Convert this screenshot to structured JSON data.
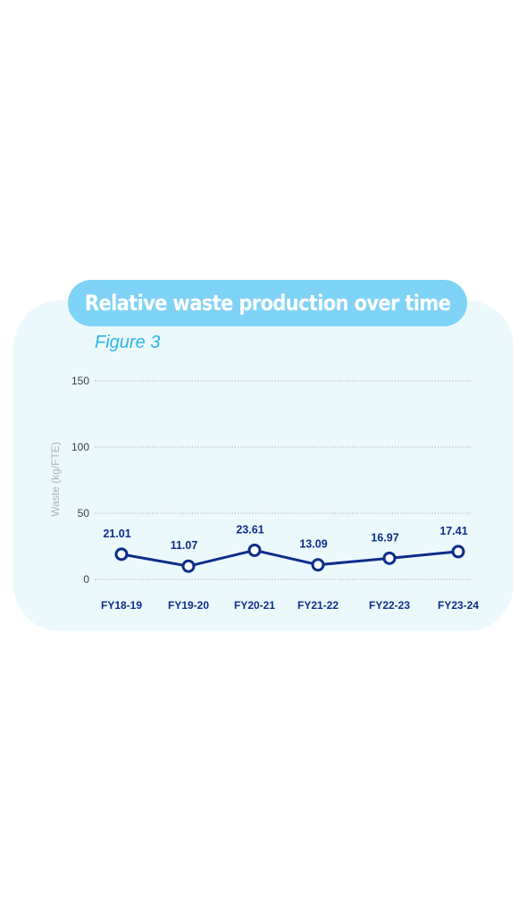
{
  "header": {
    "title": "Relative waste production over time"
  },
  "figure": {
    "label": "Figure 3"
  },
  "colors": {
    "card_bg": "#ecf9fc",
    "title_pill": "#7fd3f7",
    "line": "#0b2d8a",
    "figure_label": "#2ab6ea",
    "grid": "#8a8f96"
  },
  "chart_data": {
    "type": "line",
    "title": "Relative waste production over time",
    "subtitle": "Figure 3",
    "xlabel": "",
    "ylabel": "Waste (kg/FTE)",
    "categories": [
      "FY18-19",
      "FY19-20",
      "FY20-21",
      "FY21-22",
      "FY22-23",
      "FY23-24"
    ],
    "series": [
      {
        "values": [
          21.01,
          11.07,
          23.61,
          13.09,
          16.97,
          17.41
        ],
        "labels": [
          "21.01",
          "11.07",
          "23.61",
          "13.09",
          "16.97",
          "17.41"
        ],
        "marker_y": [
          19,
          10,
          22,
          11,
          16,
          21
        ]
      }
    ],
    "ylim": [
      0,
      150
    ],
    "yticks": [
      "0",
      "50",
      "100",
      "150"
    ],
    "ytick_values": [
      0,
      50,
      100,
      150
    ],
    "grid": true,
    "grid_style": "dotted",
    "legend": "none"
  }
}
